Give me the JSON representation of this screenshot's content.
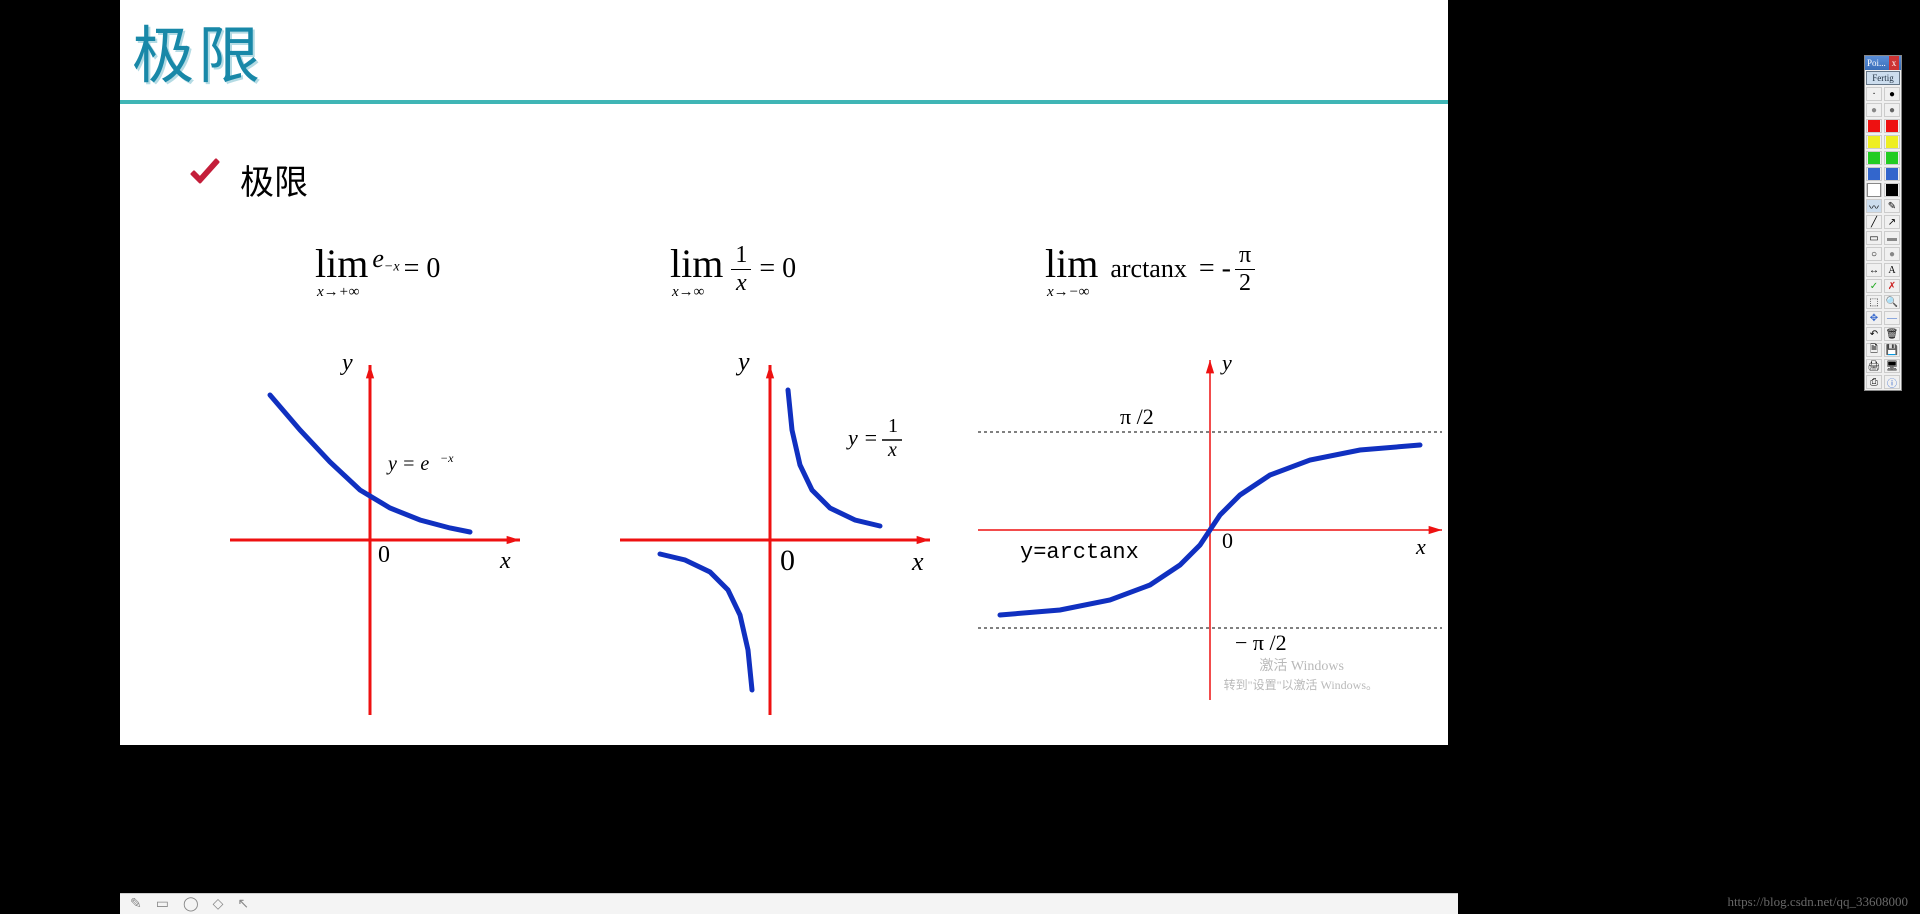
{
  "page": {
    "title": "极限",
    "subhead": "极限",
    "hr_color": "#3fb5b5",
    "title_color": "#1888a8"
  },
  "formulas": {
    "f1": {
      "lim": "lim",
      "sub": "x→+∞",
      "expr_base": "e",
      "expr_sup": "−x",
      "rhs": " = 0"
    },
    "f2": {
      "lim": "lim",
      "sub": "x→∞",
      "num": "1",
      "den": "x",
      "rhs": " = 0"
    },
    "f3": {
      "lim": "lim",
      "sub": "x→−∞",
      "fn": "arctanx",
      "rhs_pre": " = -",
      "num": "π",
      "den": "2"
    }
  },
  "charts": {
    "c1": {
      "type": "line",
      "label": "y = e⁻ˣ",
      "x_label": "x",
      "y_label": "y",
      "origin_label": "0",
      "axis_color": "#e11",
      "curve_color": "#1030c0",
      "curve_width": 5,
      "xlim": [
        -100,
        140
      ],
      "ylim": [
        -170,
        170
      ],
      "curve": [
        [
          -100,
          145
        ],
        [
          -70,
          110
        ],
        [
          -40,
          78
        ],
        [
          -10,
          50
        ],
        [
          20,
          32
        ],
        [
          50,
          20
        ],
        [
          80,
          12
        ],
        [
          100,
          8
        ]
      ]
    },
    "c2": {
      "type": "hyperbola",
      "label_num": "1",
      "label_den": "x",
      "label_pre": "y = ",
      "x_label": "x",
      "y_label": "y",
      "origin_label": "0",
      "axis_color": "#e11",
      "curve_color": "#1030c0",
      "curve_width": 5,
      "branch_pos": [
        [
          18,
          150
        ],
        [
          22,
          110
        ],
        [
          30,
          75
        ],
        [
          42,
          50
        ],
        [
          60,
          32
        ],
        [
          85,
          20
        ],
        [
          110,
          14
        ]
      ],
      "branch_neg": [
        [
          -110,
          -14
        ],
        [
          -85,
          -20
        ],
        [
          -60,
          -32
        ],
        [
          -42,
          -50
        ],
        [
          -30,
          -75
        ],
        [
          -22,
          -110
        ],
        [
          -18,
          -150
        ]
      ]
    },
    "c3": {
      "type": "arctan",
      "label": "y=arctanx",
      "x_label": "x",
      "y_label": "y",
      "origin_label": "0",
      "asym_top": "π /2",
      "asym_bot": "− π /2",
      "axis_color": "#e11",
      "curve_color": "#1030c0",
      "curve_width": 5,
      "asym_y": 98,
      "curve": [
        [
          -210,
          -85
        ],
        [
          -150,
          -80
        ],
        [
          -100,
          -70
        ],
        [
          -60,
          -55
        ],
        [
          -30,
          -35
        ],
        [
          -10,
          -15
        ],
        [
          0,
          0
        ],
        [
          10,
          15
        ],
        [
          30,
          35
        ],
        [
          60,
          55
        ],
        [
          100,
          70
        ],
        [
          150,
          80
        ],
        [
          210,
          85
        ]
      ]
    }
  },
  "toolbox": {
    "title": "Poi...",
    "close": "x",
    "button": "Fertig",
    "colors": [
      "#e11",
      "#e11",
      "#ee2",
      "#2c2",
      "#2c2",
      "#36c",
      "#36c",
      "#000",
      "#fff"
    ]
  },
  "watermark": {
    "line1": "激活 Windows",
    "line2": "转到\"设置\"以激活 Windows。"
  },
  "footer_url": "https://blog.csdn.net/qq_33608000"
}
